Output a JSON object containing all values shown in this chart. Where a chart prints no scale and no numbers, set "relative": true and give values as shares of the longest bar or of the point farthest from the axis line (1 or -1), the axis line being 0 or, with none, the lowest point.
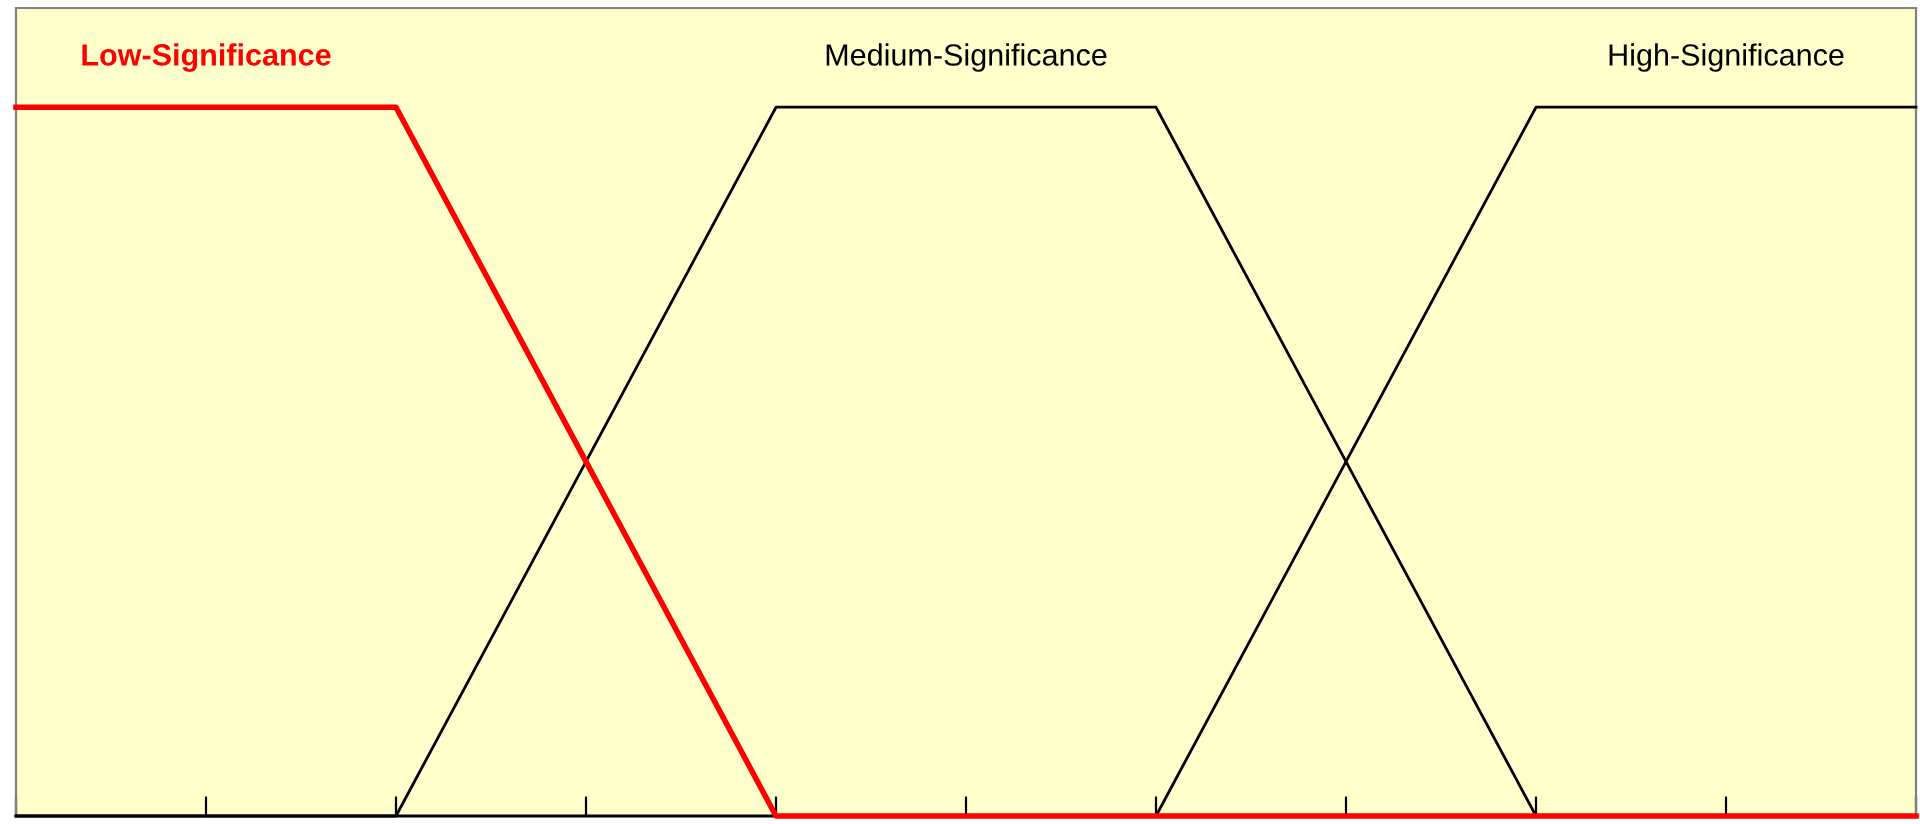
{
  "chart_data": {
    "type": "line",
    "relative": true,
    "legend": "top",
    "grid": false,
    "categories": [
      null,
      null,
      null,
      null,
      null,
      null,
      null,
      null,
      null,
      null,
      null
    ],
    "series": [
      {
        "name": "Low-Significance",
        "color": "#ff0000",
        "values": [
          1,
          1,
          1,
          0.5,
          0,
          0,
          0,
          0,
          0,
          0,
          0
        ]
      },
      {
        "name": "Medium-Significance",
        "color": "#000000",
        "values": [
          0,
          0,
          0,
          0.5,
          1,
          1,
          1,
          0.5,
          0,
          0,
          0
        ]
      },
      {
        "name": "High-Significance",
        "color": "#000000",
        "values": [
          0,
          0,
          0,
          0,
          0,
          0,
          0,
          0.5,
          1,
          1,
          1
        ]
      }
    ]
  }
}
